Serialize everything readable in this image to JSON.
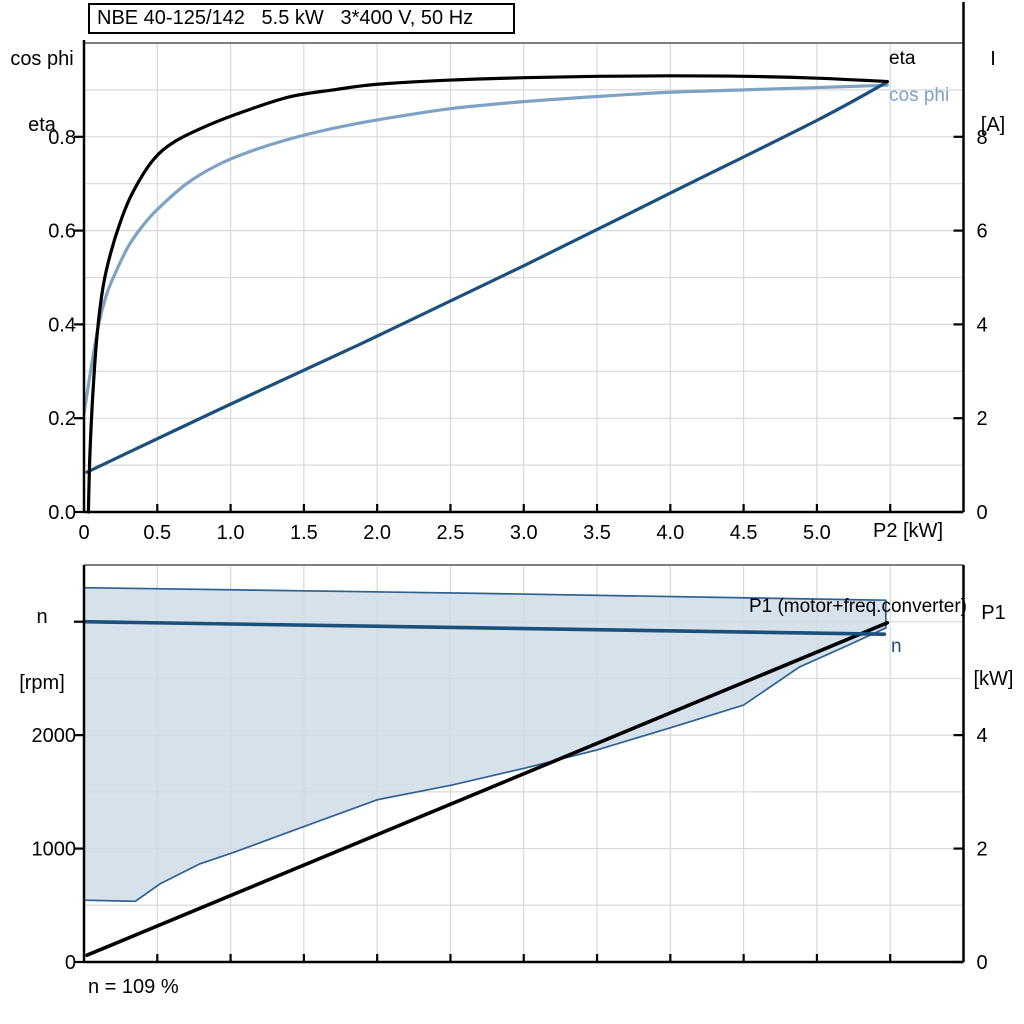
{
  "colors": {
    "black_curve": "#000000",
    "dark_blue": "#1b4f7c",
    "light_blue": "#7ea2c4",
    "band_fill": "#cfdce8",
    "band_stroke": "#2e6090",
    "grid": "#d8d8d8",
    "panel_border": "#7f7f7f",
    "axis": "#000000"
  },
  "chart_data": [
    {
      "id": "motor-performance",
      "type": "line",
      "title": "NBE 40-125/142   5.5 kW   3*400 V, 50 Hz",
      "x_axis": {
        "label": "P2 [kW]",
        "min": 0,
        "max": 6,
        "grid_step": 0.5,
        "tick_step": 0.5,
        "ticks": [
          {
            "v": 0,
            "t": "0"
          },
          {
            "v": 0.5,
            "t": "0.5"
          },
          {
            "v": 1,
            "t": "1.0"
          },
          {
            "v": 1.5,
            "t": "1.5"
          },
          {
            "v": 2,
            "t": "2.0"
          },
          {
            "v": 2.5,
            "t": "2.5"
          },
          {
            "v": 3,
            "t": "3.0"
          },
          {
            "v": 3.5,
            "t": "3.5"
          },
          {
            "v": 4,
            "t": "4.0"
          },
          {
            "v": 4.5,
            "t": "4.5"
          },
          {
            "v": 5,
            "t": "5.0"
          }
        ]
      },
      "left_axis": {
        "label_lines": [
          "cos phi",
          "eta"
        ],
        "min": 0,
        "max": 1.0,
        "ticks": [
          {
            "v": 0,
            "t": "0.0"
          },
          {
            "v": 0.2,
            "t": "0.2"
          },
          {
            "v": 0.4,
            "t": "0.4"
          },
          {
            "v": 0.6,
            "t": "0.6"
          },
          {
            "v": 0.8,
            "t": "0.8"
          }
        ]
      },
      "right_axis": {
        "label_lines": [
          "I",
          "[A]"
        ],
        "min": 0,
        "max": 10,
        "grid_step": 1,
        "ticks": [
          {
            "v": 0,
            "t": "0"
          },
          {
            "v": 2,
            "t": "2"
          },
          {
            "v": 4,
            "t": "4"
          },
          {
            "v": 6,
            "t": "6"
          },
          {
            "v": 8,
            "t": "8"
          }
        ]
      },
      "series": [
        {
          "name": "cos-phi",
          "label": "cos phi",
          "axis": "left",
          "color": "#7ea2c4",
          "width": 3.2,
          "smooth": true,
          "points": [
            [
              0,
              0.21
            ],
            [
              0.05,
              0.31
            ],
            [
              0.1,
              0.4
            ],
            [
              0.15,
              0.46
            ],
            [
              0.2,
              0.5
            ],
            [
              0.3,
              0.565
            ],
            [
              0.4,
              0.61
            ],
            [
              0.5,
              0.645
            ],
            [
              0.7,
              0.7
            ],
            [
              0.9,
              0.738
            ],
            [
              1.1,
              0.765
            ],
            [
              1.4,
              0.795
            ],
            [
              1.7,
              0.818
            ],
            [
              2.0,
              0.836
            ],
            [
              2.5,
              0.86
            ],
            [
              3.0,
              0.875
            ],
            [
              3.5,
              0.886
            ],
            [
              4.0,
              0.895
            ],
            [
              4.5,
              0.9
            ],
            [
              5.0,
              0.905
            ],
            [
              5.48,
              0.91
            ]
          ]
        },
        {
          "name": "current",
          "label": "I",
          "axis": "right",
          "color": "#1b4f7c",
          "width": 3.2,
          "smooth": true,
          "points": [
            [
              0.02,
              0.85
            ],
            [
              1.0,
              2.3
            ],
            [
              2.0,
              3.75
            ],
            [
              3.0,
              5.25
            ],
            [
              4.0,
              6.8
            ],
            [
              5.0,
              8.35
            ],
            [
              5.48,
              9.17
            ]
          ]
        },
        {
          "name": "eta",
          "label": "eta",
          "axis": "left",
          "color": "#000000",
          "width": 3.2,
          "smooth": true,
          "points": [
            [
              0.03,
              0
            ],
            [
              0.04,
              0.12
            ],
            [
              0.06,
              0.25
            ],
            [
              0.09,
              0.38
            ],
            [
              0.13,
              0.48
            ],
            [
              0.18,
              0.55
            ],
            [
              0.25,
              0.62
            ],
            [
              0.33,
              0.68
            ],
            [
              0.47,
              0.75
            ],
            [
              0.62,
              0.79
            ],
            [
              0.85,
              0.825
            ],
            [
              1.1,
              0.855
            ],
            [
              1.4,
              0.885
            ],
            [
              1.7,
              0.9
            ],
            [
              2.0,
              0.912
            ],
            [
              2.5,
              0.921
            ],
            [
              3.0,
              0.926
            ],
            [
              3.5,
              0.929
            ],
            [
              4.0,
              0.93
            ],
            [
              4.5,
              0.929
            ],
            [
              5.0,
              0.925
            ],
            [
              5.48,
              0.918
            ]
          ]
        }
      ]
    },
    {
      "id": "speed-power",
      "type": "line",
      "caption": "n = 109 %",
      "x_axis": {
        "label": "",
        "min": 0,
        "max": 6,
        "grid_step": 0.5,
        "tick_step": 0.5,
        "ticks": []
      },
      "left_axis": {
        "label_lines": [
          "n",
          "[rpm]"
        ],
        "min": 0,
        "max": 3500,
        "ticks": [
          {
            "v": 0,
            "t": "0"
          },
          {
            "v": 1000,
            "t": "1000"
          },
          {
            "v": 2000,
            "t": "2000"
          },
          {
            "v": 3000,
            "t": ""
          }
        ]
      },
      "right_axis": {
        "label_lines": [
          "P1",
          "[kW]"
        ],
        "min": 0,
        "max": 7,
        "grid_step": 1,
        "ticks": [
          {
            "v": 0,
            "t": "0"
          },
          {
            "v": 2,
            "t": "2"
          },
          {
            "v": 4,
            "t": "4"
          }
        ]
      },
      "band": {
        "name": "p1-band",
        "label": "P1 (motor+freq.converter)",
        "axis": "right",
        "fill": "#cfdce8",
        "stroke": "#2e6090",
        "upper": [
          [
            0,
            6.6
          ],
          [
            2.7,
            6.5
          ],
          [
            5.47,
            6.38
          ]
        ],
        "lower": [
          [
            0,
            1.09
          ],
          [
            0.35,
            1.07
          ],
          [
            0.52,
            1.38
          ],
          [
            0.79,
            1.73
          ],
          [
            1.03,
            1.94
          ],
          [
            1.47,
            2.36
          ],
          [
            2.0,
            2.86
          ],
          [
            2.51,
            3.12
          ],
          [
            3.01,
            3.42
          ],
          [
            3.5,
            3.74
          ],
          [
            4.0,
            4.13
          ],
          [
            4.5,
            4.53
          ],
          [
            4.88,
            5.2
          ],
          [
            5.2,
            5.57
          ],
          [
            5.47,
            5.89
          ]
        ]
      },
      "series": [
        {
          "name": "p1-line",
          "label": "",
          "axis": "right",
          "color": "#000000",
          "width": 3.6,
          "smooth": false,
          "points": [
            [
              0.02,
              0.12
            ],
            [
              5.48,
              5.98
            ]
          ]
        },
        {
          "name": "n-curve",
          "label": "n",
          "axis": "left",
          "color": "#1b4f7c",
          "width": 3.6,
          "smooth": false,
          "points": [
            [
              0,
              3000
            ],
            [
              5.46,
              2890
            ]
          ]
        }
      ]
    }
  ]
}
